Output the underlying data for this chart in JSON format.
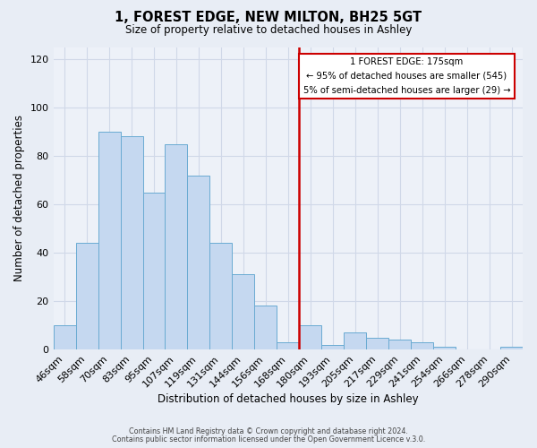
{
  "title": "1, FOREST EDGE, NEW MILTON, BH25 5GT",
  "subtitle": "Size of property relative to detached houses in Ashley",
  "xlabel": "Distribution of detached houses by size in Ashley",
  "ylabel": "Number of detached properties",
  "bar_labels": [
    "46sqm",
    "58sqm",
    "70sqm",
    "83sqm",
    "95sqm",
    "107sqm",
    "119sqm",
    "131sqm",
    "144sqm",
    "156sqm",
    "168sqm",
    "180sqm",
    "193sqm",
    "205sqm",
    "217sqm",
    "229sqm",
    "241sqm",
    "254sqm",
    "266sqm",
    "278sqm",
    "290sqm"
  ],
  "bar_values": [
    10,
    44,
    90,
    88,
    65,
    85,
    72,
    44,
    31,
    18,
    3,
    10,
    2,
    7,
    5,
    4,
    3,
    1,
    0,
    0,
    1
  ],
  "bar_color": "#c5d8f0",
  "bar_edge_color": "#6aabd2",
  "bg_color": "#e8edf5",
  "plot_bg_color": "#edf1f8",
  "grid_color": "#d0d8e8",
  "ref_line_color": "#cc0000",
  "annotation_line1": "1 FOREST EDGE: 175sqm",
  "annotation_line2": "← 95% of detached houses are smaller (545)",
  "annotation_line3": "5% of semi-detached houses are larger (29) →",
  "annotation_box_color": "#cc0000",
  "ylim": [
    0,
    125
  ],
  "yticks": [
    0,
    20,
    40,
    60,
    80,
    100,
    120
  ],
  "footnote1": "Contains HM Land Registry data © Crown copyright and database right 2024.",
  "footnote2": "Contains public sector information licensed under the Open Government Licence v.3.0."
}
